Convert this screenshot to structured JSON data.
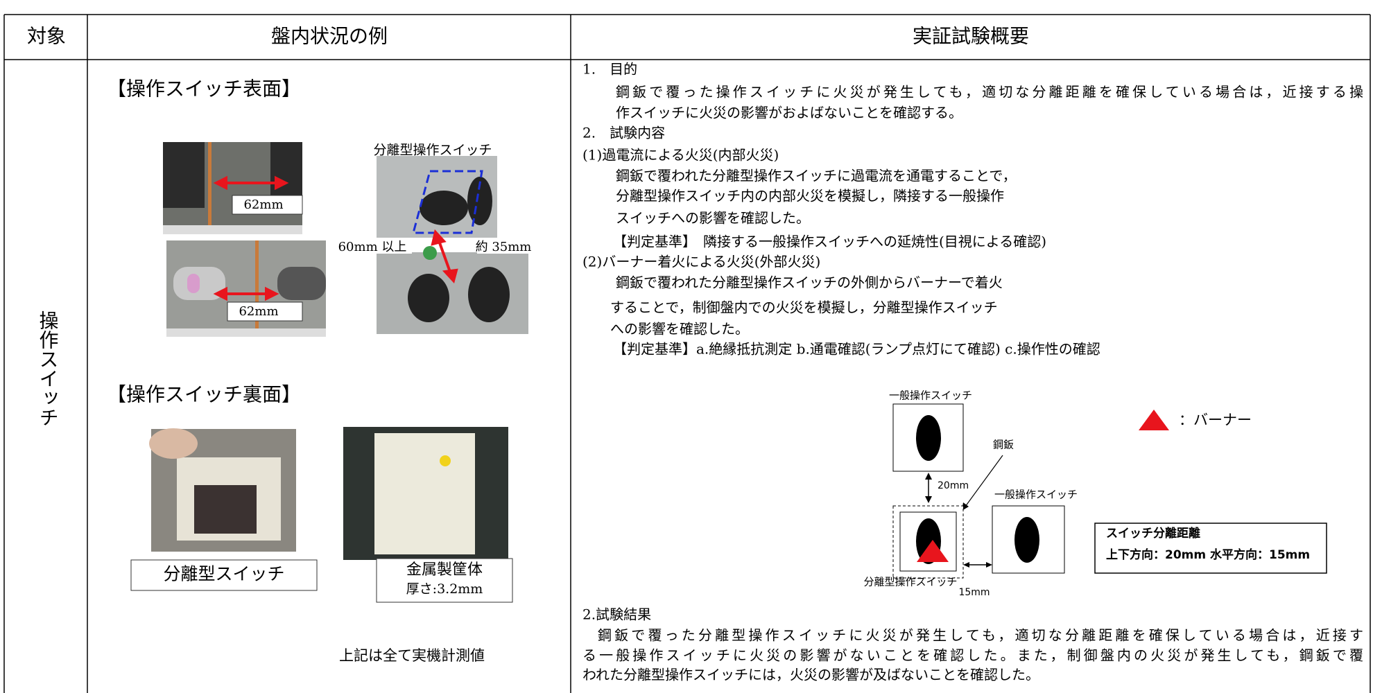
{
  "header": {
    "columns": [
      "対象",
      "盤内状況の例",
      "実証試験概要"
    ]
  },
  "row": {
    "target": "操作スイッチ",
    "example": {
      "front_heading": "【操作スイッチ表面】",
      "front_labels": {
        "separable_switch": "分離型操作スイッチ",
        "width_top": "62mm",
        "width_bottom": "62mm",
        "vertical_gap": "60mm 以上",
        "horizontal_gap": "約 35mm"
      },
      "back_heading": "【操作スイッチ裏面】",
      "back_labels": {
        "separable": "分離型スイッチ",
        "enclosure": [
          "金属製筐体",
          "厚さ:3.2mm"
        ]
      },
      "note": "上記は全て実機計測値"
    },
    "overview": {
      "lines": [
        "1.　目的",
        "鋼鈑で覆った操作スイッチに火災が発生しても，適切な分離距離を確保している場合は，近接する操",
        "作スイッチに火災の影響がおよばないことを確認する。",
        "2.　試験内容",
        "(1)過電流による火災(内部火災)",
        "鋼鈑で覆われた分離型操作スイッチに過電流を通電することで，",
        "分離型操作スイッチ内の内部火災を模擬し，隣接する一般操作",
        "スイッチへの影響を確認した。",
        "【判定基準】　隣接する一般操作スイッチへの延焼性(目視による確認)",
        "(2)バーナー着火による火災(外部火災)",
        "鋼鈑で覆われた分離型操作スイッチの外側からバーナーで着火",
        "することで，制御盤内での火災を模擬し，分離型操作スイッチ",
        "への影響を確認した。",
        "【判定基準】a.絶縁抵抗測定 b.通電確認(ランプ点灯にて確認) c.操作性の確認"
      ],
      "diagram": {
        "general_switch_top": "一般操作スイッチ",
        "steel_plate": "鋼鈑",
        "vertical_distance": "20mm",
        "general_switch_right": "一般操作スイッチ",
        "separable_switch": "分離型操作スイッチ",
        "horizontal_distance": "15mm",
        "burner_legend": "：バーナー",
        "distance_title": "スイッチ分離距離",
        "distance_detail": "上下方向：20mm 水平方向：15mm"
      },
      "result_heading": "2.試験結果",
      "result_lines": [
        "鋼鈑で覆った分離型操作スイッチに火災が発生しても，適切な分離距離を確保している場合は，近接す",
        "る一般操作スイッチに火災の影響がないことを確認した。また，制御盤内の火災が発生しても，鋼鈑で覆",
        "われた分離型操作スイッチには，火災の影響が及ばないことを確認した。"
      ]
    }
  }
}
